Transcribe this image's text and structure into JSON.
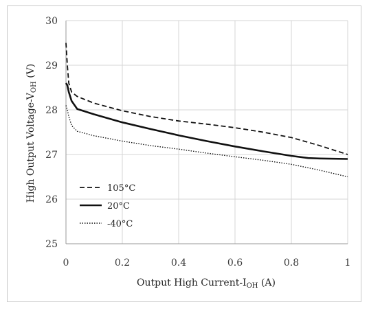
{
  "chart_data": {
    "type": "line",
    "xlabel": "Output High Current-I",
    "xlabel_sub": "OH",
    "xlabel_unit": " (A)",
    "ylabel": "High Output Voltage-V",
    "ylabel_sub": "OH",
    "ylabel_unit": " (V)",
    "xlim": [
      0,
      1
    ],
    "ylim": [
      25,
      30
    ],
    "xticks": [
      "0",
      "0.2",
      "0.4",
      "0.6",
      "0.8",
      "1"
    ],
    "yticks": [
      "25",
      "26",
      "27",
      "28",
      "29",
      "30"
    ],
    "grid": true,
    "legend_position": "bottom-left",
    "series": [
      {
        "name": "105°C",
        "dash": "dashed",
        "x": [
          0,
          0.005,
          0.01,
          0.02,
          0.04,
          0.1,
          0.2,
          0.3,
          0.4,
          0.5,
          0.6,
          0.7,
          0.8,
          0.9,
          1.0
        ],
        "y": [
          29.5,
          29.0,
          28.6,
          28.4,
          28.3,
          28.15,
          27.98,
          27.85,
          27.75,
          27.68,
          27.6,
          27.5,
          27.38,
          27.2,
          27.0
        ]
      },
      {
        "name": "20°C",
        "dash": "solid",
        "x": [
          0,
          0.005,
          0.01,
          0.02,
          0.04,
          0.1,
          0.2,
          0.3,
          0.4,
          0.5,
          0.6,
          0.7,
          0.8,
          0.86,
          0.9,
          1.0
        ],
        "y": [
          28.6,
          28.55,
          28.4,
          28.2,
          28.02,
          27.9,
          27.72,
          27.57,
          27.43,
          27.3,
          27.18,
          27.07,
          26.97,
          26.92,
          26.91,
          26.9
        ]
      },
      {
        "name": "-40°C",
        "dash": "dotted",
        "x": [
          0,
          0.005,
          0.01,
          0.02,
          0.04,
          0.1,
          0.2,
          0.3,
          0.4,
          0.5,
          0.6,
          0.7,
          0.8,
          0.9,
          1.0
        ],
        "y": [
          28.1,
          28.0,
          27.85,
          27.65,
          27.52,
          27.42,
          27.3,
          27.2,
          27.12,
          27.03,
          26.95,
          26.87,
          26.78,
          26.65,
          26.5
        ]
      }
    ],
    "colors": {
      "line": "#111111",
      "grid": "#d6d6d6",
      "axis": "#9a9a9a"
    }
  }
}
